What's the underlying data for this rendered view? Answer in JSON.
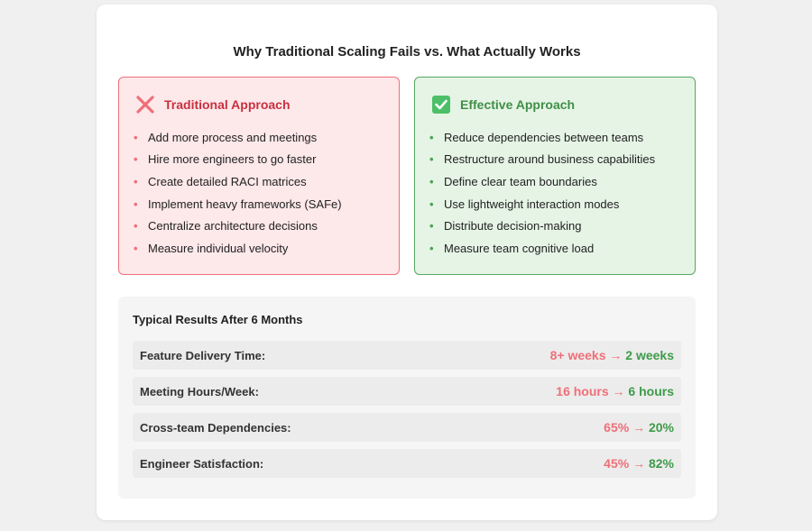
{
  "title": "Why Traditional Scaling Fails vs. What Actually Works",
  "traditional": {
    "icon": "x-mark-icon",
    "heading": "Traditional Approach",
    "items": [
      "Add more process and meetings",
      "Hire more engineers to go faster",
      "Create detailed RACI matrices",
      "Implement heavy frameworks (SAFe)",
      "Centralize architecture decisions",
      "Measure individual velocity"
    ]
  },
  "effective": {
    "icon": "check-box-icon",
    "heading": "Effective Approach",
    "items": [
      "Reduce dependencies between teams",
      "Restructure around business capabilities",
      "Define clear team boundaries",
      "Use lightweight interaction modes",
      "Distribute decision-making",
      "Measure team cognitive load"
    ]
  },
  "results": {
    "title": "Typical Results After 6 Months",
    "arrow": "→",
    "rows": [
      {
        "label": "Feature Delivery Time:",
        "before": "8+ weeks",
        "after": "2 weeks"
      },
      {
        "label": "Meeting Hours/Week:",
        "before": "16 hours",
        "after": "6 hours"
      },
      {
        "label": "Cross-team Dependencies:",
        "before": "65%",
        "after": "20%"
      },
      {
        "label": "Engineer Satisfaction:",
        "before": "45%",
        "after": "82%"
      }
    ]
  },
  "colors": {
    "bad_accent": "#ef6f78",
    "bad_text": "#c9303e",
    "good_accent": "#4aa457",
    "good_text": "#3f8f47"
  }
}
